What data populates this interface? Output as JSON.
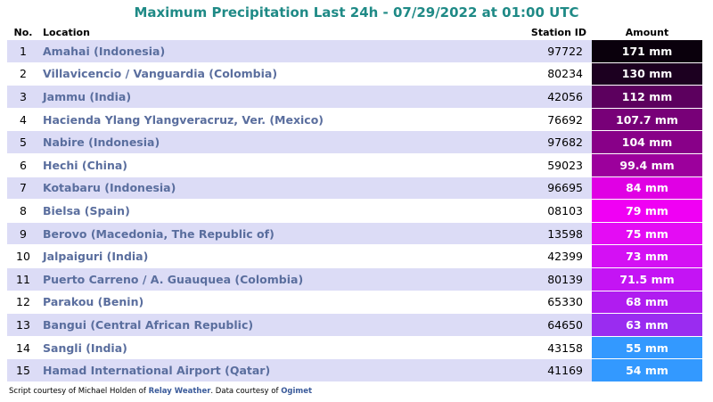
{
  "title": "Maximum Precipitation Last 24h - 07/29/2022 at 01:00 UTC",
  "header": {
    "no": "No.",
    "location": "Location",
    "station_id": "Station ID",
    "amount": "Amount"
  },
  "rows": [
    {
      "no": 1,
      "location": "Amahai (Indonesia)",
      "station_id": "97722",
      "amount": "171 mm",
      "color": "#0a000c"
    },
    {
      "no": 2,
      "location": "Villavicencio / Vanguardia (Colombia)",
      "station_id": "80234",
      "amount": "130 mm",
      "color": "#1c0020"
    },
    {
      "no": 3,
      "location": "Jammu (India)",
      "station_id": "42056",
      "amount": "112 mm",
      "color": "#5c005e"
    },
    {
      "no": 4,
      "location": "Hacienda Ylang Ylangveracruz, Ver. (Mexico)",
      "station_id": "76692",
      "amount": "107.7 mm",
      "color": "#780078"
    },
    {
      "no": 5,
      "location": "Nabire (Indonesia)",
      "station_id": "97682",
      "amount": "104 mm",
      "color": "#880088"
    },
    {
      "no": 6,
      "location": "Hechi (China)",
      "station_id": "59023",
      "amount": "99.4 mm",
      "color": "#9c009c"
    },
    {
      "no": 7,
      "location": "Kotabaru (Indonesia)",
      "station_id": "96695",
      "amount": "84 mm",
      "color": "#e000e4"
    },
    {
      "no": 8,
      "location": "Bielsa (Spain)",
      "station_id": "08103",
      "amount": "79 mm",
      "color": "#f000f4"
    },
    {
      "no": 9,
      "location": "Berovo (Macedonia, The Republic of)",
      "station_id": "13598",
      "amount": "75 mm",
      "color": "#e40cf4"
    },
    {
      "no": 10,
      "location": "Jalpaiguri (India)",
      "station_id": "42399",
      "amount": "73 mm",
      "color": "#d410f4"
    },
    {
      "no": 11,
      "location": "Puerto Carreno / A. Guauquea (Colombia)",
      "station_id": "80139",
      "amount": "71.5 mm",
      "color": "#c414f4"
    },
    {
      "no": 12,
      "location": "Parakou (Benin)",
      "station_id": "65330",
      "amount": "68 mm",
      "color": "#b01cf0"
    },
    {
      "no": 13,
      "location": "Bangui (Central African Republic)",
      "station_id": "64650",
      "amount": "63 mm",
      "color": "#9a2cf0"
    },
    {
      "no": 14,
      "location": "Sangli (India)",
      "station_id": "43158",
      "amount": "55 mm",
      "color": "#3399ff"
    },
    {
      "no": 15,
      "location": "Hamad International Airport (Qatar)",
      "station_id": "41169",
      "amount": "54 mm",
      "color": "#3399ff"
    }
  ],
  "footer": {
    "text1": "Script courtesy of  Michael Holden of",
    "link1": "Relay Weather",
    "text2": ". Data courtesy of",
    "link2": "Ogimet"
  }
}
